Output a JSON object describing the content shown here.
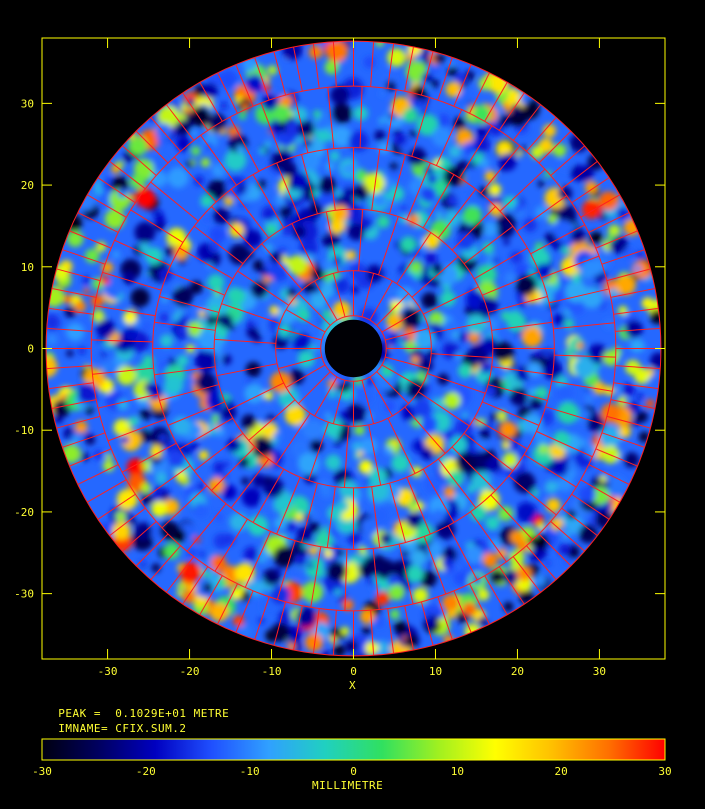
{
  "chart_data": {
    "type": "heatmap",
    "title": "",
    "xlabel": "X",
    "ylabel": "",
    "xlim": [
      -38,
      38
    ],
    "ylim": [
      -38,
      38
    ],
    "x_ticks": [
      -30,
      -20,
      -10,
      0,
      10,
      20,
      30
    ],
    "y_ticks": [
      30,
      20,
      10,
      0,
      -10,
      -20,
      -30
    ],
    "x_tick_labels": [
      "-30",
      "-20",
      "-10",
      "0",
      "10",
      "20",
      "30"
    ],
    "y_tick_labels": [
      "30",
      "20",
      "10",
      "0",
      "-10",
      "-20",
      "-30"
    ],
    "dish_radius": 37.5,
    "central_hole_radius": 3.5,
    "panel_ring_radii": [
      4,
      9.5,
      17,
      24.5,
      32,
      37.5
    ],
    "panel_rays_per_ring": [
      24,
      24,
      48,
      48,
      96
    ],
    "grid_color": "#ff2020",
    "peak_label": "PEAK =",
    "peak_value": "0.1029E+01 METRE",
    "imname_label": "IMNAME=",
    "imname_value": "CFIX.SUM.2",
    "colorbar": {
      "range": [
        -30,
        30
      ],
      "ticks": [
        "-30",
        "-20",
        "-10",
        "0",
        "10",
        "20",
        "30"
      ],
      "label": "MILLIMETRE",
      "colors": [
        "#000010",
        "#000060",
        "#0000c0",
        "#2050ff",
        "#30a0ff",
        "#20d0c0",
        "#30e060",
        "#a0f020",
        "#ffff00",
        "#ffc000",
        "#ff7000",
        "#ff0000"
      ]
    }
  }
}
